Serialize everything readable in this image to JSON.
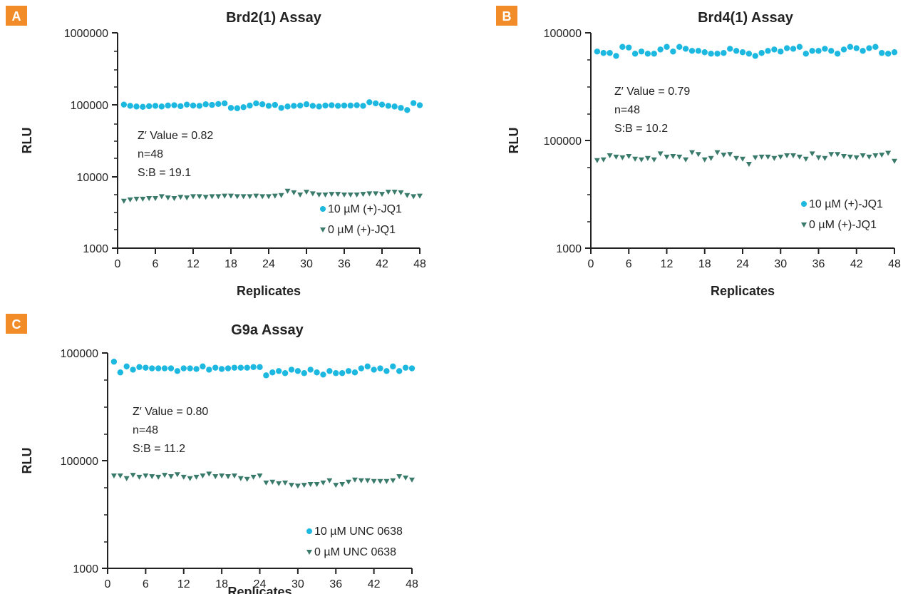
{
  "colors": {
    "active": "#1cb8e0",
    "control": "#3a7a6a",
    "badge": "#f28c28"
  },
  "chart_data": [
    {
      "type": "scatter",
      "panel": "A",
      "title": "Brd2(1) Assay",
      "xlabel": "Replicates",
      "ylabel": "RLU",
      "yscale": "log",
      "xlim": [
        0,
        48
      ],
      "ylim": [
        1000,
        1000000
      ],
      "xticks": [
        "0",
        "6",
        "12",
        "18",
        "24",
        "30",
        "36",
        "42",
        "48"
      ],
      "yticks": [
        "1000000",
        "100000",
        "10000",
        "1000"
      ],
      "annotations": [
        "Z′ Value = 0.82",
        "n=48",
        "S:B = 19.1"
      ],
      "legend_position": "bottom-right",
      "series": [
        {
          "name": "10 µM (+)-JQ1",
          "marker": "circle",
          "values": [
            100000,
            96000,
            94000,
            93000,
            95000,
            96000,
            94000,
            97000,
            98000,
            95000,
            100000,
            97000,
            96000,
            101000,
            99000,
            102000,
            104000,
            90000,
            89000,
            92000,
            97000,
            104000,
            101000,
            96000,
            99000,
            90000,
            94000,
            96000,
            97000,
            101000,
            96000,
            94000,
            97000,
            98000,
            96000,
            97000,
            97000,
            98000,
            96000,
            108000,
            104000,
            100000,
            96000,
            94000,
            90000,
            84000,
            105000,
            98000
          ]
        },
        {
          "name": "0 µM (+)-JQ1",
          "marker": "triangle",
          "values": [
            4500,
            4700,
            4800,
            4800,
            4900,
            4900,
            5200,
            5000,
            4900,
            5100,
            5000,
            5200,
            5200,
            5100,
            5200,
            5200,
            5300,
            5300,
            5200,
            5200,
            5200,
            5300,
            5200,
            5200,
            5300,
            5400,
            6200,
            5900,
            5500,
            6000,
            5700,
            5500,
            5500,
            5600,
            5600,
            5500,
            5500,
            5500,
            5600,
            5700,
            5700,
            5600,
            6000,
            6000,
            5900,
            5400,
            5200,
            5300
          ]
        }
      ]
    },
    {
      "type": "scatter",
      "panel": "B",
      "title": "Brd4(1) Assay",
      "xlabel": "Replicates",
      "ylabel": "RLU",
      "yscale": "log",
      "xlim": [
        0,
        48
      ],
      "ylim": [
        1000,
        100000
      ],
      "xticks": [
        "0",
        "6",
        "12",
        "18",
        "24",
        "30",
        "36",
        "42",
        "48"
      ],
      "yticks": [
        "100000",
        "100000",
        "1000"
      ],
      "annotations": [
        "Z′ Value = 0.79",
        "n=48",
        "S:B = 10.2"
      ],
      "legend_position": "bottom-right",
      "series": [
        {
          "name": "10 µM (+)-JQ1",
          "marker": "circle",
          "values": [
            67000,
            65000,
            65000,
            61000,
            74000,
            73000,
            64000,
            67000,
            64000,
            64000,
            70000,
            74000,
            67000,
            74000,
            71000,
            68000,
            68000,
            66000,
            64000,
            64000,
            65000,
            71000,
            68000,
            66000,
            64000,
            61000,
            65000,
            68000,
            70000,
            67000,
            72000,
            71000,
            74000,
            64000,
            68000,
            68000,
            71000,
            68000,
            64000,
            70000,
            74000,
            72000,
            68000,
            72000,
            74000,
            65000,
            64000,
            66000
          ]
        },
        {
          "name": "0 µM (+)-JQ1",
          "marker": "triangle",
          "values": [
            6500,
            6600,
            7200,
            7000,
            6900,
            7100,
            6700,
            6600,
            6800,
            6600,
            7500,
            7000,
            7100,
            7000,
            6600,
            7700,
            7400,
            6600,
            6800,
            7700,
            7300,
            7400,
            6800,
            6700,
            6000,
            6900,
            7000,
            7000,
            6800,
            7000,
            7200,
            7200,
            7000,
            6700,
            7500,
            6900,
            6800,
            7400,
            7400,
            7100,
            7000,
            6900,
            7200,
            7000,
            7200,
            7300,
            7600,
            6400
          ]
        }
      ]
    },
    {
      "type": "scatter",
      "panel": "C",
      "title": "G9a Assay",
      "xlabel": "Replicates",
      "ylabel": "RLU",
      "yscale": "log",
      "xlim": [
        0,
        48
      ],
      "ylim": [
        1000,
        100000
      ],
      "xticks": [
        "0",
        "6",
        "12",
        "18",
        "24",
        "30",
        "36",
        "42",
        "48"
      ],
      "yticks": [
        "100000",
        "100000",
        "1000"
      ],
      "annotations": [
        "Z′ Value = 0.80",
        "n=48",
        "S:B = 11.2"
      ],
      "legend_position": "bottom-right",
      "series": [
        {
          "name": "10 µM UNC 0638",
          "marker": "circle",
          "values": [
            83000,
            66000,
            75000,
            70000,
            74000,
            73000,
            72000,
            72000,
            72000,
            72000,
            68000,
            72000,
            72000,
            71000,
            75000,
            70000,
            73000,
            71000,
            72000,
            73000,
            73000,
            73000,
            74000,
            74000,
            62000,
            66000,
            68000,
            65000,
            70000,
            68000,
            65000,
            70000,
            66000,
            63000,
            68000,
            65000,
            65000,
            68000,
            66000,
            72000,
            75000,
            70000,
            72000,
            68000,
            75000,
            68000,
            73000,
            72000
          ]
        },
        {
          "name": "0 µM UNC 0638",
          "marker": "triangle",
          "values": [
            7200,
            7200,
            6800,
            7300,
            7000,
            7200,
            7100,
            7000,
            7300,
            7100,
            7400,
            7000,
            6800,
            7000,
            7200,
            7500,
            7100,
            7200,
            7100,
            7200,
            6800,
            6700,
            7000,
            7200,
            6200,
            6300,
            6100,
            6200,
            5900,
            5800,
            5900,
            6000,
            6000,
            6200,
            6500,
            5900,
            6000,
            6300,
            6600,
            6500,
            6500,
            6400,
            6400,
            6400,
            6500,
            7100,
            6900,
            6600
          ]
        }
      ]
    }
  ]
}
